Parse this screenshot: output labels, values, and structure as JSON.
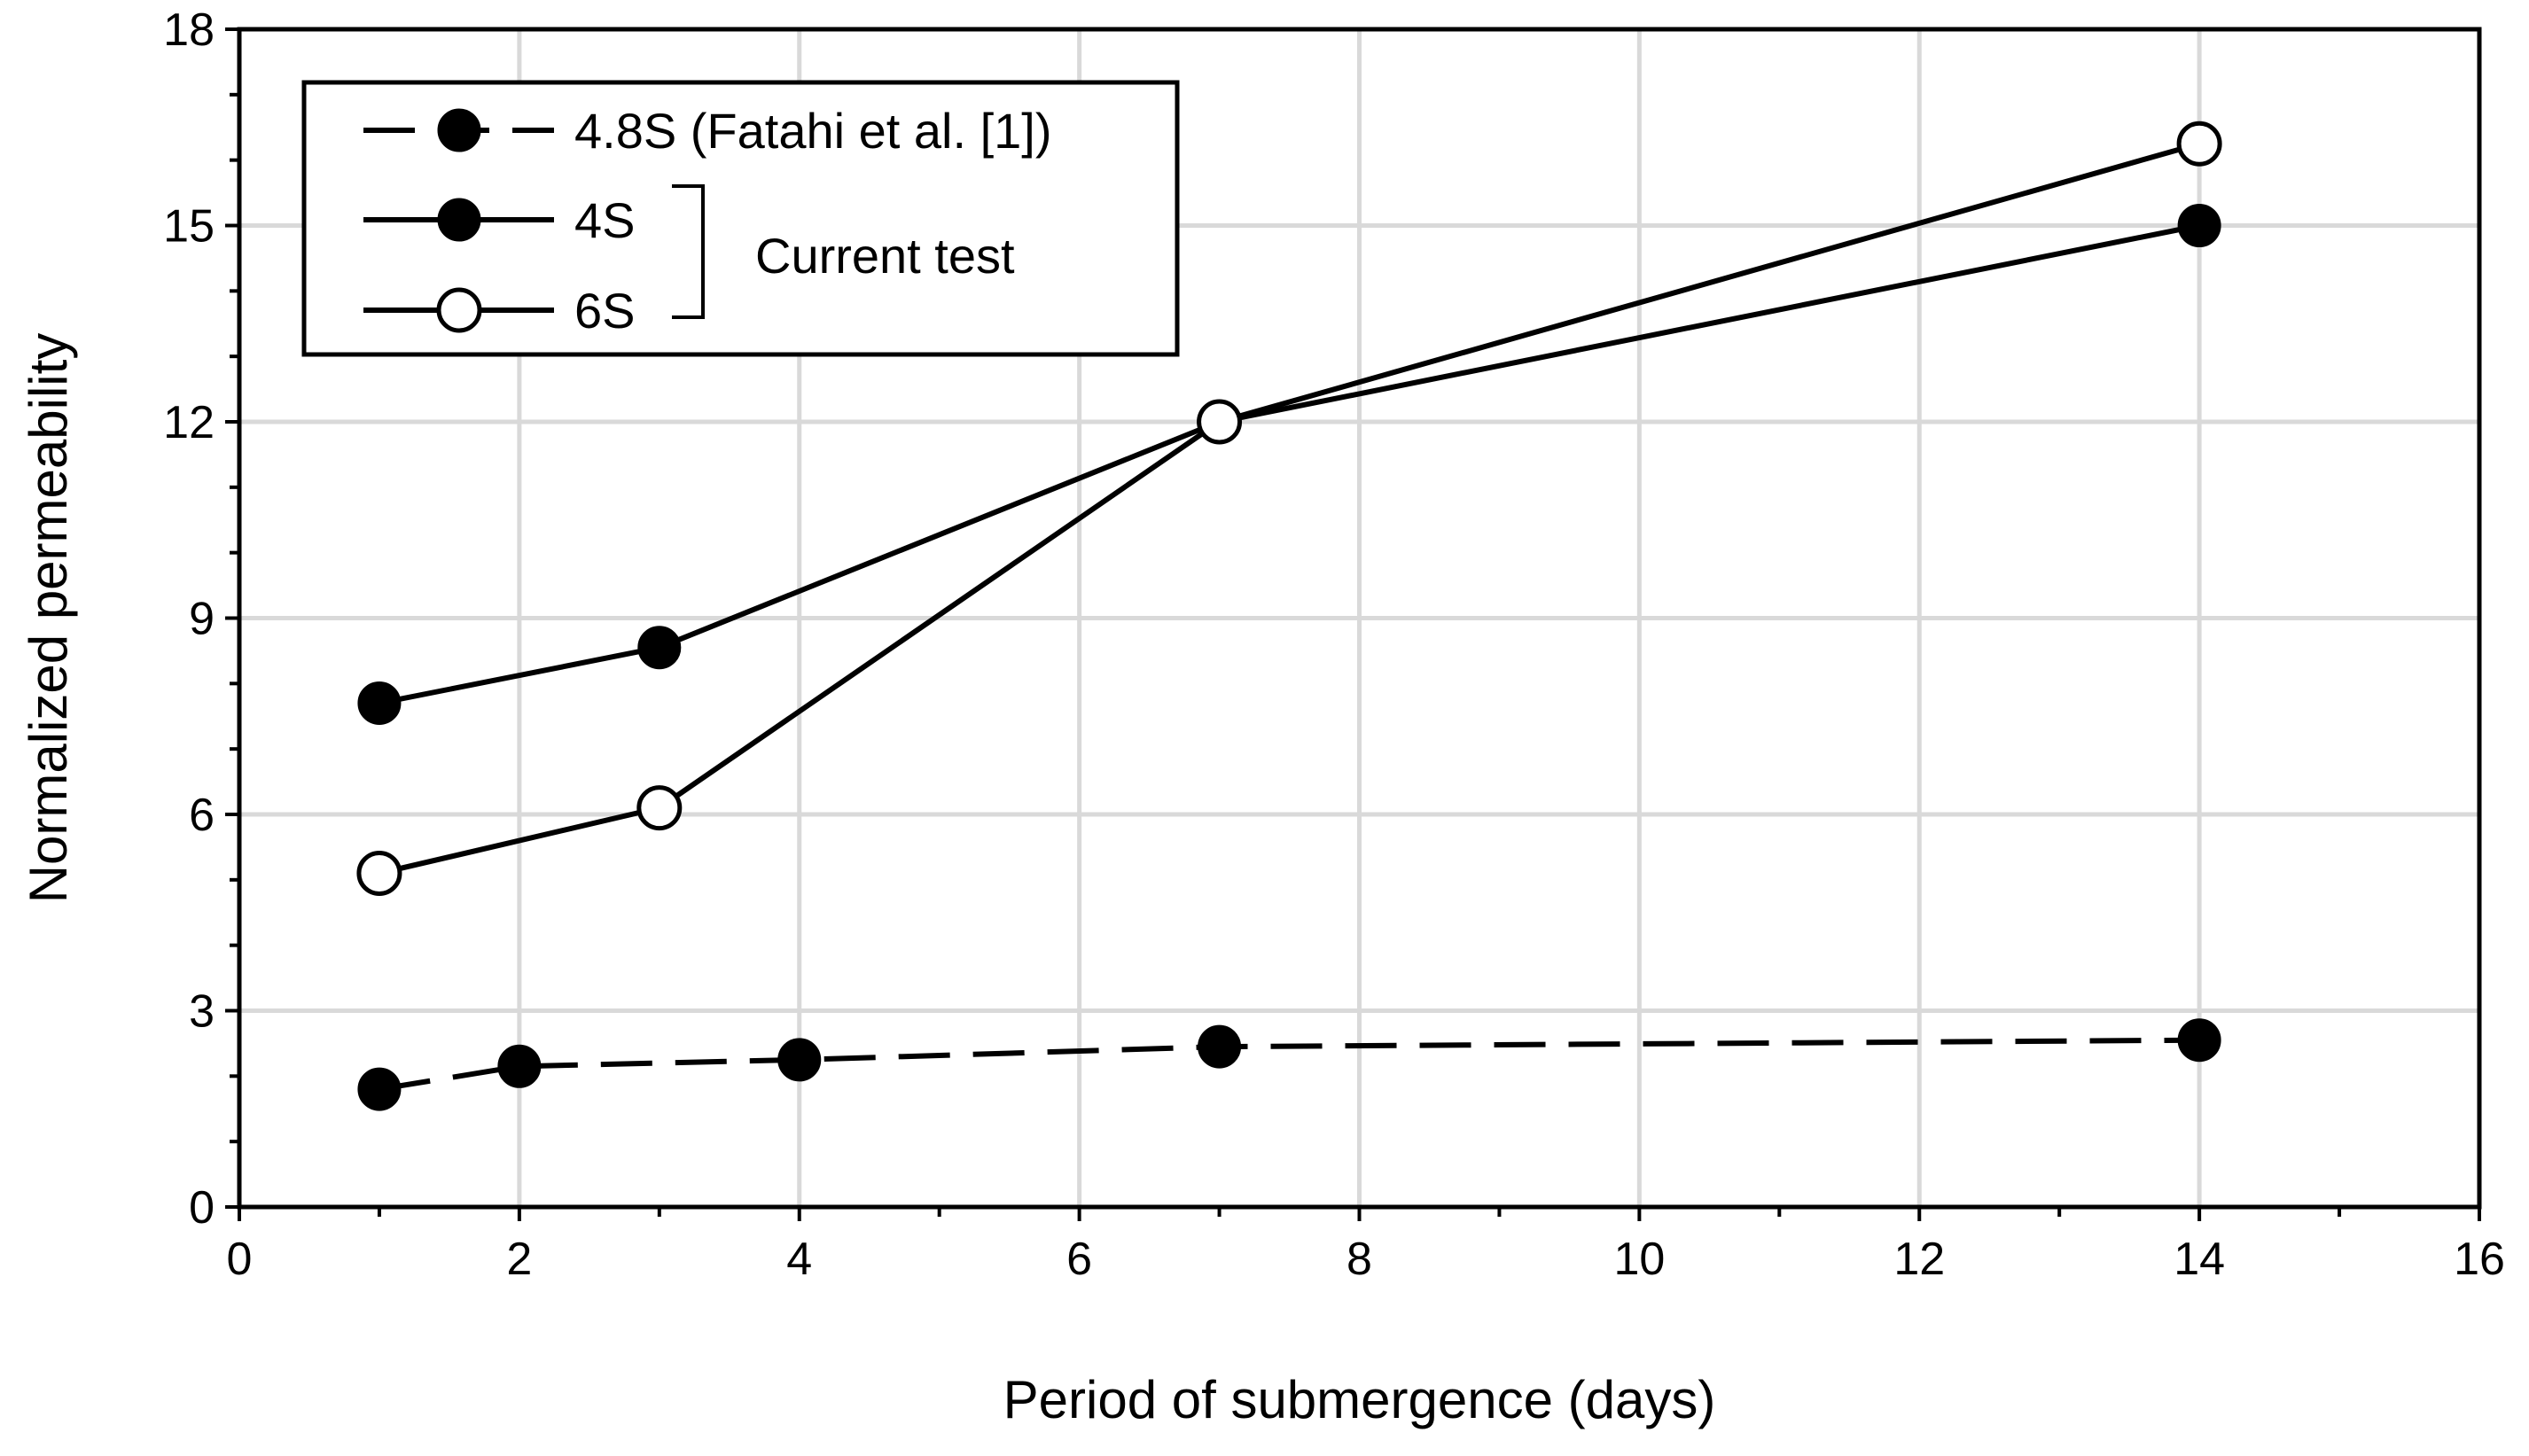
{
  "chart_data": {
    "type": "line",
    "title": "",
    "xlabel": "Period of submergence (days)",
    "ylabel": "Normalized permeability",
    "xlim": [
      0,
      16
    ],
    "ylim": [
      0,
      18
    ],
    "xticks": [
      0,
      2,
      4,
      6,
      8,
      10,
      12,
      14,
      16
    ],
    "yticks": [
      0,
      3,
      6,
      9,
      12,
      15,
      18
    ],
    "grid": true,
    "legend_position": "top-left",
    "legend_group_label": "Current test",
    "series": [
      {
        "name": "4.8S (Fatahi et al. [1])",
        "line": "dashed",
        "marker": "filled-circle",
        "x": [
          1,
          2,
          4,
          7,
          14
        ],
        "y": [
          1.8,
          2.15,
          2.25,
          2.45,
          2.55
        ]
      },
      {
        "name": "4S",
        "line": "solid",
        "marker": "filled-circle",
        "x": [
          1,
          3,
          7,
          14
        ],
        "y": [
          7.7,
          8.55,
          12.0,
          15.0
        ]
      },
      {
        "name": "6S",
        "line": "solid",
        "marker": "open-circle",
        "x": [
          1,
          3,
          7,
          14
        ],
        "y": [
          5.1,
          6.1,
          12.0,
          16.25
        ]
      }
    ]
  }
}
